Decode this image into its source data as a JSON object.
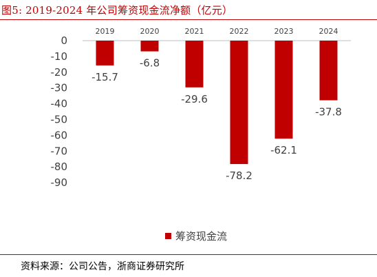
{
  "figure": {
    "title": "图5:   2019-2024 年公司筹资现金流净额（亿元）",
    "source": "资料来源：公司公告，浙商证券研究所"
  },
  "chart_data": {
    "type": "bar",
    "categories": [
      "2019",
      "2020",
      "2021",
      "2022",
      "2023",
      "2024"
    ],
    "series": [
      {
        "name": "筹资现金流",
        "values": [
          -15.7,
          -6.8,
          -29.6,
          -78.2,
          -62.1,
          -37.8
        ]
      }
    ],
    "data_labels": [
      "-15.7",
      "-6.8",
      "-29.6",
      "-78.2",
      "-62.1",
      "-37.8"
    ],
    "y_ticks": [
      "0",
      "-10",
      "-20",
      "-30",
      "-40",
      "-50",
      "-60",
      "-70",
      "-80",
      "-90"
    ],
    "ylim": [
      -90,
      0
    ],
    "category_axis_position": "top",
    "legend_position": "bottom",
    "grid": false,
    "bar_color": "#c00000"
  }
}
